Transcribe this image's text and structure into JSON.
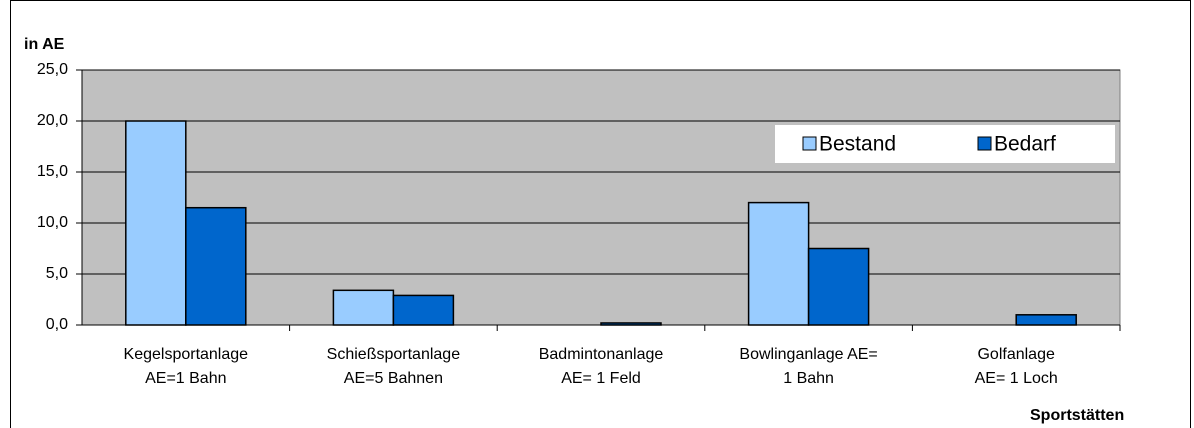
{
  "chart_data": {
    "type": "bar",
    "y_label": "in AE",
    "x_label": "Sportstätten",
    "categories": [
      "Kegelsportanlage\nAE=1 Bahn",
      "Schießsportanlage\nAE=5 Bahnen",
      "Badmintonanlage\nAE= 1 Feld",
      "Bowlinganlage AE=\n1 Bahn",
      "Golfanlage\nAE= 1 Loch"
    ],
    "series": [
      {
        "name": "Bestand",
        "color": "#99ccff",
        "values": [
          20.0,
          3.4,
          0,
          12.0,
          0
        ]
      },
      {
        "name": "Bedarf",
        "color": "#0066cc",
        "values": [
          11.5,
          2.9,
          0.2,
          7.5,
          1.0
        ]
      }
    ],
    "ylim": [
      0,
      25
    ],
    "yticks": [
      {
        "value": 0,
        "label": "0,0"
      },
      {
        "value": 5,
        "label": "5,0"
      },
      {
        "value": 10,
        "label": "10,0"
      },
      {
        "value": 15,
        "label": "15,0"
      },
      {
        "value": 20,
        "label": "20,0"
      },
      {
        "value": 25,
        "label": "25,0"
      }
    ],
    "grid": true,
    "legend": "upper-right"
  }
}
